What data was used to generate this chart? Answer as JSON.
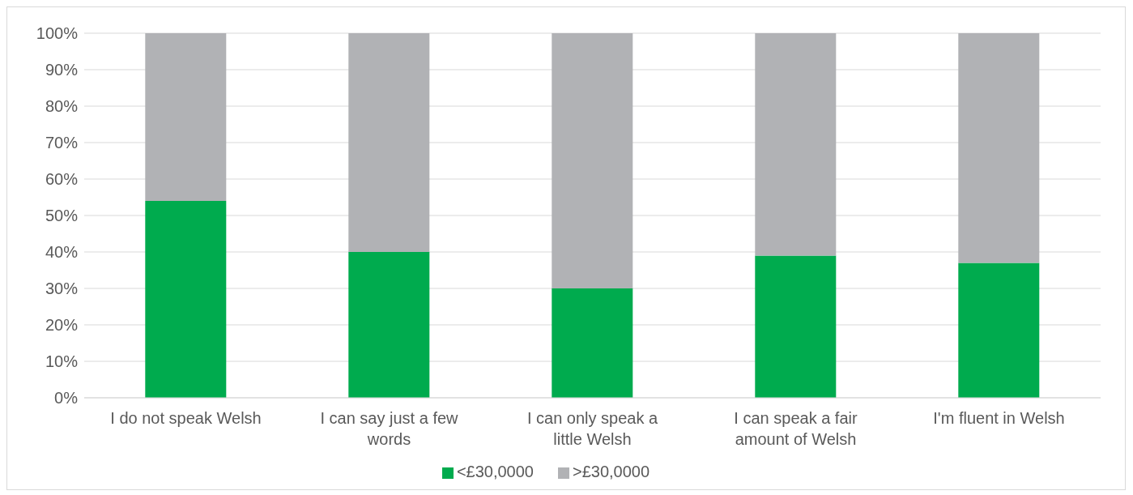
{
  "chart_data": {
    "type": "bar",
    "stacked": true,
    "categories": [
      "I do not speak Welsh",
      "I can say just a few words",
      "I can only speak a little Welsh",
      "I can speak a fair amount of Welsh",
      "I'm fluent in Welsh"
    ],
    "series": [
      {
        "name": "<£30,0000",
        "color": "#00ab4e",
        "values": [
          54,
          40,
          30,
          39,
          37
        ]
      },
      {
        "name": ">£30,0000",
        "color": "#b1b2b5",
        "values": [
          46,
          60,
          70,
          61,
          63
        ]
      }
    ],
    "ylim": [
      0,
      100
    ],
    "yticks": [
      {
        "value": 0,
        "label": "0%"
      },
      {
        "value": 10,
        "label": "10%"
      },
      {
        "value": 20,
        "label": "20%"
      },
      {
        "value": 30,
        "label": "30%"
      },
      {
        "value": 40,
        "label": "40%"
      },
      {
        "value": 50,
        "label": "50%"
      },
      {
        "value": 60,
        "label": "60%"
      },
      {
        "value": 70,
        "label": "70%"
      },
      {
        "value": 80,
        "label": "80%"
      },
      {
        "value": 90,
        "label": "90%"
      },
      {
        "value": 100,
        "label": "100%"
      }
    ],
    "grid": "y",
    "legend": "bottom"
  }
}
